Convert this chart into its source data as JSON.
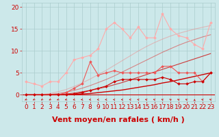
{
  "background_color": "#cce8ea",
  "grid_color": "#aacccc",
  "xlabel": "Vent moyen/en rafales ( km/h )",
  "xlabel_color": "#cc0000",
  "xlabel_fontsize": 8,
  "tick_color": "#cc0000",
  "tick_fontsize": 6.5,
  "xlim": [
    -0.5,
    23.5
  ],
  "ylim": [
    -1.5,
    21
  ],
  "yticks": [
    0,
    5,
    10,
    15,
    20
  ],
  "xticks": [
    0,
    1,
    2,
    3,
    4,
    5,
    6,
    7,
    8,
    9,
    10,
    11,
    12,
    13,
    14,
    15,
    16,
    17,
    18,
    19,
    20,
    21,
    22,
    23
  ],
  "series": [
    {
      "label": "smooth1",
      "x": [
        0,
        1,
        2,
        3,
        4,
        5,
        6,
        7,
        8,
        9,
        10,
        11,
        12,
        13,
        14,
        15,
        16,
        17,
        18,
        19,
        20,
        21,
        22,
        23
      ],
      "y": [
        0,
        0,
        0,
        0,
        0,
        0,
        0.1,
        0.2,
        0.3,
        0.5,
        0.7,
        0.9,
        1.1,
        1.4,
        1.7,
        2.0,
        2.3,
        2.7,
        3.0,
        3.4,
        3.8,
        4.2,
        4.6,
        5.0
      ],
      "color": "#cc0000",
      "linewidth": 1.0,
      "marker": null,
      "markersize": 0,
      "linestyle": "-",
      "alpha": 1.0,
      "zorder": 3
    },
    {
      "label": "smooth2",
      "x": [
        0,
        1,
        2,
        3,
        4,
        5,
        6,
        7,
        8,
        9,
        10,
        11,
        12,
        13,
        14,
        15,
        16,
        17,
        18,
        19,
        20,
        21,
        22,
        23
      ],
      "y": [
        0,
        0,
        0,
        0,
        0.1,
        0.2,
        0.4,
        0.7,
        1.0,
        1.4,
        1.8,
        2.3,
        2.8,
        3.4,
        4.0,
        4.6,
        5.2,
        5.8,
        6.4,
        7.0,
        7.6,
        8.2,
        8.8,
        9.4
      ],
      "color": "#cc0000",
      "linewidth": 0.8,
      "marker": null,
      "markersize": 0,
      "linestyle": "-",
      "alpha": 0.75,
      "zorder": 3
    },
    {
      "label": "smooth3",
      "x": [
        0,
        1,
        2,
        3,
        4,
        5,
        6,
        7,
        8,
        9,
        10,
        11,
        12,
        13,
        14,
        15,
        16,
        17,
        18,
        19,
        20,
        21,
        22,
        23
      ],
      "y": [
        0,
        0,
        0,
        0.1,
        0.3,
        0.6,
        1.0,
        1.5,
        2.1,
        2.8,
        3.5,
        4.3,
        5.2,
        6.1,
        7.0,
        7.9,
        8.8,
        9.7,
        10.5,
        11.3,
        12.0,
        12.6,
        13.2,
        13.7
      ],
      "color": "#dd4444",
      "linewidth": 0.8,
      "marker": null,
      "markersize": 0,
      "linestyle": "-",
      "alpha": 0.6,
      "zorder": 3
    },
    {
      "label": "smooth4",
      "x": [
        0,
        1,
        2,
        3,
        4,
        5,
        6,
        7,
        8,
        9,
        10,
        11,
        12,
        13,
        14,
        15,
        16,
        17,
        18,
        19,
        20,
        21,
        22,
        23
      ],
      "y": [
        0,
        0,
        0.1,
        0.3,
        0.7,
        1.2,
        1.9,
        2.7,
        3.6,
        4.6,
        5.6,
        6.7,
        7.8,
        8.9,
        10.0,
        11.0,
        11.9,
        12.7,
        13.4,
        14.0,
        14.5,
        15.0,
        15.4,
        15.8
      ],
      "color": "#ee8888",
      "linewidth": 0.8,
      "marker": null,
      "markersize": 0,
      "linestyle": "-",
      "alpha": 0.5,
      "zorder": 3
    },
    {
      "label": "data_pink_scatter",
      "x": [
        0,
        1,
        2,
        3,
        4,
        5,
        6,
        7,
        8,
        9,
        10,
        11,
        12,
        13,
        14,
        15,
        16,
        17,
        18,
        19,
        20,
        21,
        22,
        23
      ],
      "y": [
        3.0,
        2.5,
        2.0,
        3.0,
        3.0,
        5.0,
        8.0,
        8.5,
        9.0,
        10.5,
        15.0,
        16.5,
        15.0,
        13.0,
        15.5,
        13.0,
        13.0,
        18.5,
        15.0,
        13.5,
        13.0,
        11.5,
        10.5,
        16.5
      ],
      "color": "#ffaaaa",
      "linewidth": 0.8,
      "marker": "D",
      "markersize": 2.0,
      "linestyle": "-",
      "alpha": 1.0,
      "zorder": 4
    },
    {
      "label": "data_mid_scatter",
      "x": [
        0,
        1,
        2,
        3,
        4,
        5,
        6,
        7,
        8,
        9,
        10,
        11,
        12,
        13,
        14,
        15,
        16,
        17,
        18,
        19,
        20,
        21,
        22,
        23
      ],
      "y": [
        0,
        0,
        0,
        0,
        0,
        0.5,
        1.5,
        2.5,
        7.5,
        4.5,
        5.0,
        5.5,
        5.0,
        5.0,
        5.0,
        5.0,
        5.0,
        6.5,
        6.5,
        5.0,
        5.0,
        5.0,
        3.0,
        5.0
      ],
      "color": "#ee5555",
      "linewidth": 0.8,
      "marker": "D",
      "markersize": 2.0,
      "linestyle": "-",
      "alpha": 1.0,
      "zorder": 5
    },
    {
      "label": "data_bottom_scatter",
      "x": [
        0,
        1,
        2,
        3,
        4,
        5,
        6,
        7,
        8,
        9,
        10,
        11,
        12,
        13,
        14,
        15,
        16,
        17,
        18,
        19,
        20,
        21,
        22,
        23
      ],
      "y": [
        0,
        0,
        0,
        0,
        0,
        0,
        0.2,
        0.5,
        1.0,
        1.5,
        2.0,
        3.0,
        3.5,
        3.5,
        3.5,
        3.5,
        3.5,
        4.0,
        3.5,
        2.5,
        2.5,
        3.0,
        3.0,
        5.0
      ],
      "color": "#cc0000",
      "linewidth": 0.8,
      "marker": "D",
      "markersize": 2.0,
      "linestyle": "-",
      "alpha": 1.0,
      "zorder": 5
    }
  ],
  "wind_arrows_x": [
    0,
    1,
    2,
    3,
    4,
    5,
    6,
    7,
    8,
    9,
    10,
    11,
    12,
    13,
    14,
    15,
    16,
    17,
    18,
    19,
    20,
    21,
    22,
    23
  ],
  "wind_angles": [
    225,
    225,
    225,
    225,
    220,
    215,
    210,
    200,
    195,
    190,
    185,
    175,
    170,
    165,
    160,
    155,
    150,
    145,
    135,
    140,
    145,
    90,
    150,
    145
  ]
}
